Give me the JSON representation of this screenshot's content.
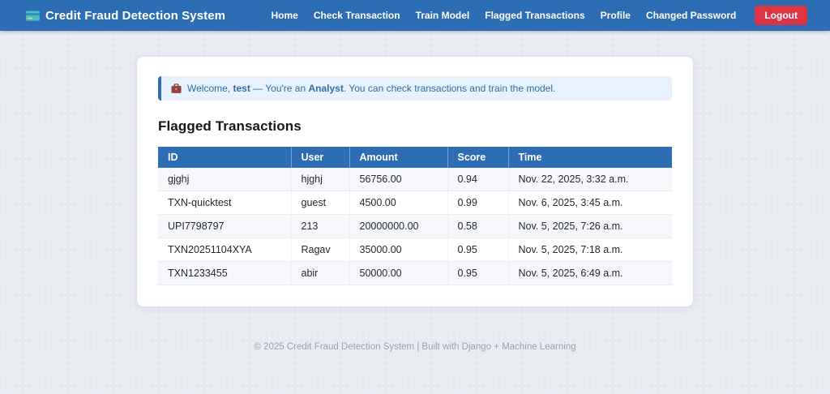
{
  "navbar": {
    "brand": "Credit Fraud Detection System",
    "brand_icon": "credit-card-icon",
    "links": [
      {
        "label": "Home"
      },
      {
        "label": "Check Transaction"
      },
      {
        "label": "Train Model"
      },
      {
        "label": "Flagged Transactions"
      },
      {
        "label": "Profile"
      },
      {
        "label": "Changed Password"
      }
    ],
    "logout_label": "Logout"
  },
  "alert": {
    "icon": "briefcase-icon",
    "prefix": "Welcome, ",
    "username": "test",
    "middle": " — You're an ",
    "role": "Analyst",
    "suffix": ". You can check transactions and train the model."
  },
  "page": {
    "title": "Flagged Transactions"
  },
  "table": {
    "columns": [
      "ID",
      "User",
      "Amount",
      "Score",
      "Time"
    ],
    "rows": [
      [
        "gjghj",
        "hjghj",
        "56756.00",
        "0.94",
        "Nov. 22, 2025, 3:32 a.m."
      ],
      [
        "TXN-quicktest",
        "guest",
        "4500.00",
        "0.99",
        "Nov. 6, 2025, 3:45 a.m."
      ],
      [
        "UPI7798797",
        "213",
        "20000000.00",
        "0.58",
        "Nov. 5, 2025, 7:26 a.m."
      ],
      [
        "TXN20251104XYA",
        "Ragav",
        "35000.00",
        "0.95",
        "Nov. 5, 2025, 7:18 a.m."
      ],
      [
        "TXN1233455",
        "abir",
        "50000.00",
        "0.95",
        "Nov. 5, 2025, 6:49 a.m."
      ]
    ]
  },
  "footer": {
    "text": "© 2025 Credit Fraud Detection System | Built with Django + Machine Learning"
  },
  "colors": {
    "primary": "#2d6db4",
    "danger": "#dc3545",
    "alert_bg": "#e8f2fc",
    "alert_text": "#2f6ea8",
    "page_bg": "#e8ecf2"
  }
}
